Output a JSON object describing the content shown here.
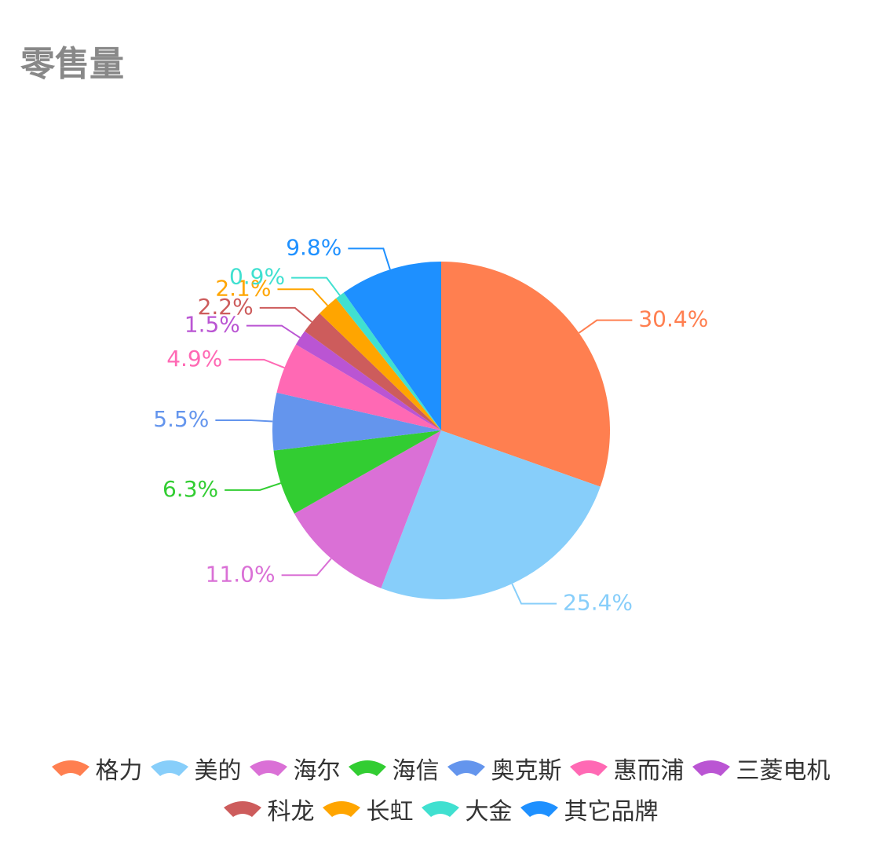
{
  "chart_data": {
    "type": "pie",
    "title": "零售量",
    "categories": [
      "格力",
      "美的",
      "海尔",
      "海信",
      "奥克斯",
      "惠而浦",
      "三菱电机",
      "科龙",
      "长虹",
      "大金",
      "其它品牌"
    ],
    "values": [
      30.4,
      25.4,
      11.0,
      6.3,
      5.5,
      4.9,
      1.5,
      2.2,
      2.1,
      0.9,
      9.8
    ],
    "value_labels": [
      "30.4%",
      "25.4%",
      "11.0%",
      "6.3%",
      "5.5%",
      "4.9%",
      "1.5%",
      "2.2%",
      "2.1%",
      "0.9%",
      "9.8%"
    ],
    "colors": [
      "#ff7f50",
      "#87cefa",
      "#da70d6",
      "#32cd32",
      "#6495ed",
      "#ff69b4",
      "#ba55d3",
      "#cd5c5c",
      "#ffa500",
      "#40e0d0",
      "#1e90ff"
    ]
  }
}
